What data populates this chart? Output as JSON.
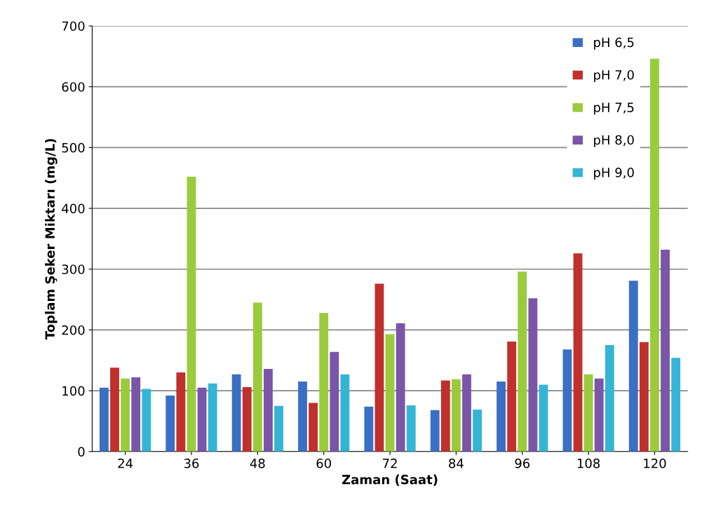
{
  "chart_data": {
    "type": "bar",
    "xlabel": "Zaman (Saat)",
    "ylabel": "Toplam Şeker Miktarı (mg/L)",
    "categories": [
      "24",
      "36",
      "48",
      "60",
      "72",
      "84",
      "96",
      "108",
      "120"
    ],
    "series": [
      {
        "name": "pH 6,5",
        "color": "#3a6fc4",
        "values": [
          105,
          92,
          127,
          115,
          74,
          68,
          115,
          168,
          281
        ]
      },
      {
        "name": "pH 7,0",
        "color": "#c0302c",
        "values": [
          138,
          130,
          106,
          80,
          276,
          117,
          181,
          326,
          180
        ]
      },
      {
        "name": "pH 7,5",
        "color": "#9acb3c",
        "values": [
          120,
          452,
          245,
          228,
          193,
          119,
          296,
          127,
          646
        ]
      },
      {
        "name": "pH 8,0",
        "color": "#7b55a8",
        "values": [
          122,
          105,
          136,
          164,
          211,
          127,
          252,
          120,
          332
        ]
      },
      {
        "name": "pH 9,0",
        "color": "#35b5d5",
        "values": [
          103,
          112,
          75,
          127,
          76,
          69,
          110,
          175,
          154
        ]
      }
    ],
    "ylim": [
      0,
      700
    ],
    "yticks": [
      0,
      100,
      200,
      300,
      400,
      500,
      600,
      700
    ],
    "grid": "y",
    "legend": "top right"
  }
}
